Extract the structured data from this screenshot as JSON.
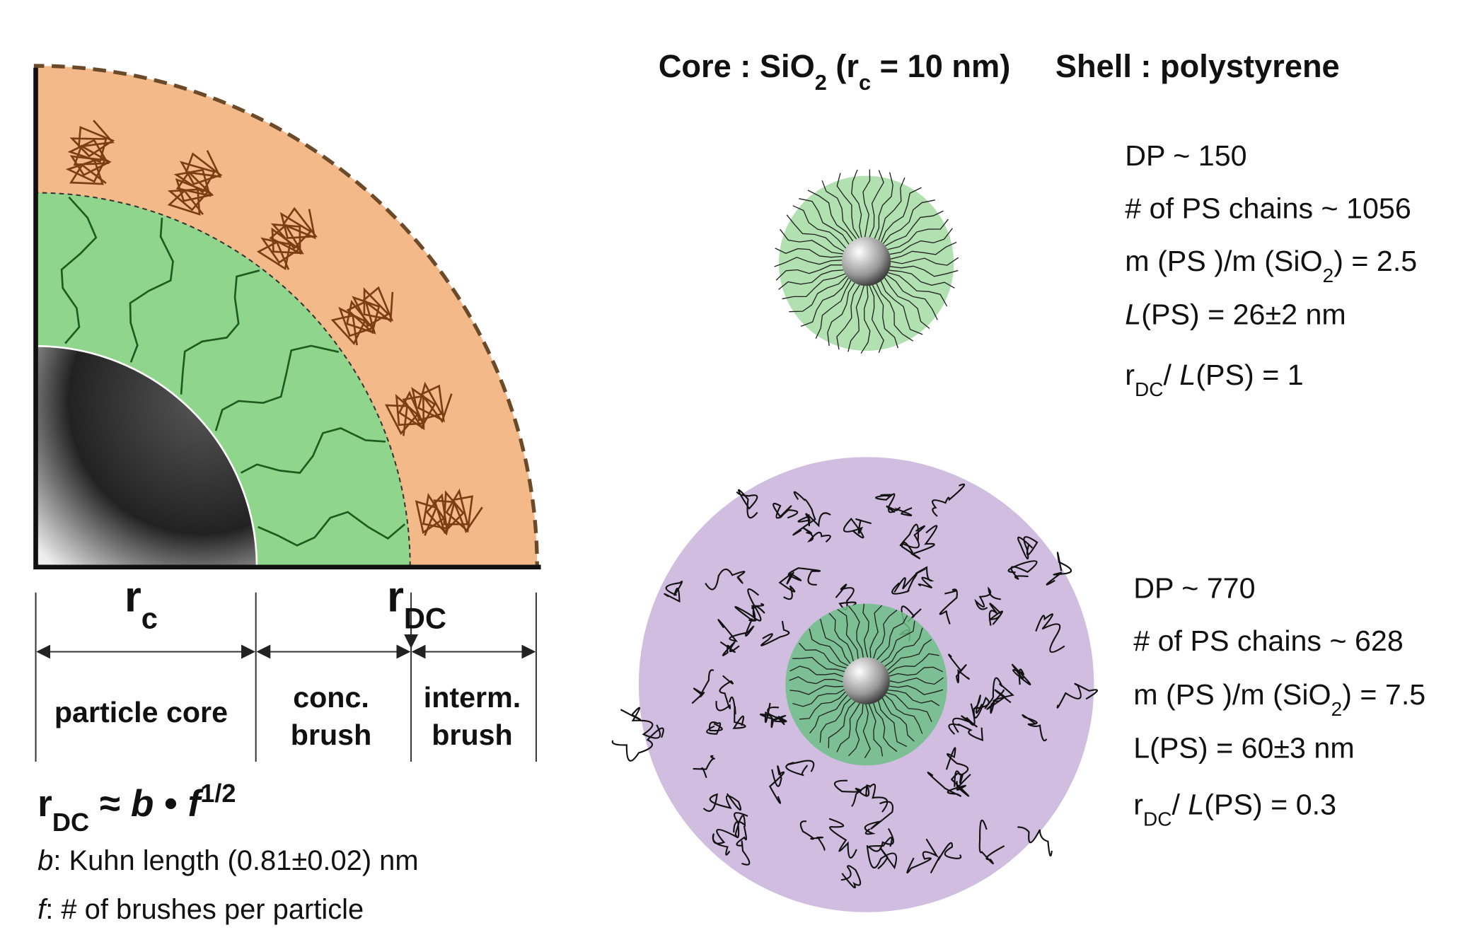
{
  "title": {
    "core": [
      [
        "Core : SiO",
        {
          "sub": "2"
        },
        " (r",
        {
          "sub": "c"
        },
        " = 10 nm)"
      ]
    ],
    "shell": [
      [
        "Shell : polystyrene"
      ]
    ]
  },
  "quadrant": {
    "r_c": [
      [
        "r",
        {
          "sub": "c"
        }
      ]
    ],
    "r_dc": [
      [
        "r",
        {
          "sub": "DC"
        }
      ]
    ],
    "regions": [
      [
        [
          "particle core"
        ]
      ],
      [
        [
          "conc."
        ],
        [
          "brush"
        ]
      ],
      [
        [
          "interm."
        ],
        [
          "brush"
        ]
      ]
    ]
  },
  "formula": [
    [
      "r",
      {
        "sub": "DC"
      },
      " ≈ ",
      {
        "i": "b"
      },
      " • ",
      {
        "i": "f"
      },
      {
        "sup": "1/2"
      }
    ],
    [
      {
        "i": "b"
      },
      ": Kuhn length (0.81±0.02) nm"
    ],
    [
      {
        "i": "f"
      },
      ":  # of brushes per particle"
    ]
  ],
  "particles": [
    {
      "lines": [
        [
          "DP ~ 150"
        ],
        [
          "# of PS chains ~ 1056"
        ],
        [
          "m (PS )/m (SiO",
          {
            "sub": "2"
          },
          ") = 2.5"
        ],
        [
          {
            "i": "L"
          },
          "(PS) = 26±2 nm"
        ],
        [
          "r",
          {
            "sub": "DC"
          },
          "/ ",
          {
            "i": "L"
          },
          "(PS) = 1"
        ]
      ]
    },
    {
      "lines": [
        [
          "DP ~ 770"
        ],
        [
          "# of PS chains ~ 628"
        ],
        [
          "m (PS )/m (SiO",
          {
            "sub": "2"
          },
          ") = 7.5"
        ],
        [
          "L(PS) = 60±3 nm"
        ],
        [
          "r",
          {
            "sub": "DC"
          },
          "/ ",
          {
            "i": "L"
          },
          "(PS) = 0.3"
        ]
      ]
    }
  ]
}
